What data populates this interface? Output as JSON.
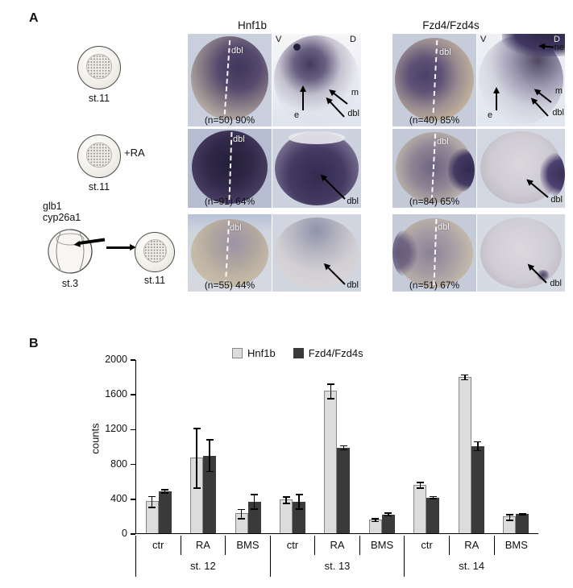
{
  "figure": {
    "panelA_label": "A",
    "panelB_label": "B"
  },
  "panelA": {
    "titles": {
      "hnf1b": "Hnf1b",
      "fzd": "Fzd4/Fzd4s"
    },
    "drawings": {
      "st11_row1": "st.11",
      "plus_ra": "+RA",
      "st11_row2": "st.11",
      "glb1": "glb1",
      "cyp26a1": "cyp26a1",
      "st3": "st.3",
      "st11_row3": "st.11"
    },
    "annotations": {
      "dbl": "dbl",
      "V": "V",
      "D": "D",
      "e": "e",
      "m": "m",
      "ne": "ne"
    },
    "captions": {
      "hnf1b_row1": "(n=50) 90%",
      "hnf1b_row2": "(n=91) 64%",
      "hnf1b_row3": "(n=55) 44%",
      "fzd_row1": "(n=40) 85%",
      "fzd_row2": "(n=84) 65%",
      "fzd_row3": "(n=51) 67%"
    }
  },
  "chart_data": {
    "type": "bar",
    "title": "",
    "xlabel": "",
    "ylabel": "counts",
    "ylim": [
      0,
      2000
    ],
    "yticks": [
      0,
      400,
      800,
      1200,
      1600,
      2000
    ],
    "grid": false,
    "legend_position": "top",
    "groups": [
      "st. 12",
      "st. 13",
      "st. 14"
    ],
    "conditions": [
      "ctr",
      "RA",
      "BMS"
    ],
    "series": [
      {
        "name": "Hnf1b",
        "color": "#dcdcdc",
        "values": [
          370,
          870,
          230,
          390,
          1640,
          160,
          560,
          1800,
          190
        ],
        "errors": [
          70,
          350,
          60,
          45,
          90,
          25,
          40,
          35,
          40
        ]
      },
      {
        "name": "Fzd4/Fzd4s",
        "color": "#3a3a3a",
        "values": [
          480,
          890,
          360,
          360,
          980,
          215,
          410,
          1000,
          220
        ],
        "errors": [
          25,
          190,
          90,
          90,
          30,
          25,
          20,
          60,
          15
        ]
      }
    ]
  }
}
